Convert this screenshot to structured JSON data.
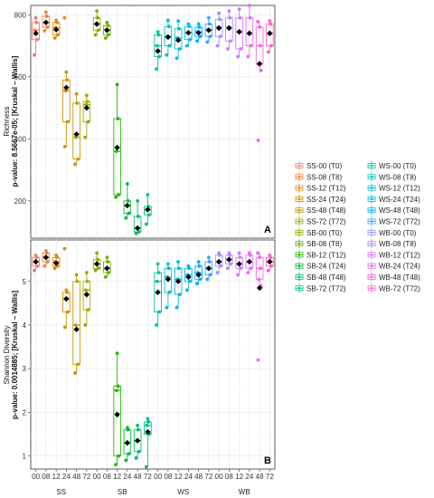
{
  "chart_data": [
    {
      "type": "boxplot",
      "panel_tag": "A",
      "ylabel_line1": "Richness",
      "ylabel_line2": "p-value: 8.5667e-05; [Kruskal – Wallis]",
      "ylim": [
        80,
        830
      ],
      "yticks": [
        200,
        400,
        600,
        800
      ],
      "tick_labels": [
        "200",
        "400",
        "600",
        "800"
      ],
      "grid": true,
      "samples": [
        {
          "id": "SS-00",
          "q1": 720,
          "med": 750,
          "q3": 775,
          "lo": 670,
          "hi": 790,
          "mean": 740,
          "pts": [
            670,
            720,
            750,
            775,
            790
          ]
        },
        {
          "id": "SS-08",
          "q1": 760,
          "med": 775,
          "q3": 795,
          "lo": 748,
          "hi": 808,
          "mean": 775,
          "pts": [
            748,
            760,
            775,
            795,
            808
          ]
        },
        {
          "id": "SS-12",
          "q1": 735,
          "med": 758,
          "q3": 775,
          "lo": 725,
          "hi": 782,
          "mean": 752,
          "pts": [
            725,
            735,
            758,
            775,
            782
          ]
        },
        {
          "id": "SS-24",
          "q1": 455,
          "med": 555,
          "q3": 590,
          "lo": 375,
          "hi": 615,
          "mean": 565,
          "pts": [
            375,
            455,
            555,
            590,
            615,
            790
          ]
        },
        {
          "id": "SS-48",
          "q1": 335,
          "med": 405,
          "q3": 515,
          "lo": 318,
          "hi": 545,
          "mean": 415,
          "pts": [
            318,
            335,
            405,
            515,
            545
          ]
        },
        {
          "id": "SS-72",
          "q1": 455,
          "med": 510,
          "q3": 520,
          "lo": 405,
          "hi": 540,
          "mean": 500,
          "pts": [
            405,
            455,
            510,
            520,
            540
          ]
        },
        {
          "id": "SB-00",
          "q1": 750,
          "med": 770,
          "q3": 790,
          "lo": 735,
          "hi": 812,
          "mean": 770,
          "pts": [
            735,
            750,
            770,
            790,
            812
          ]
        },
        {
          "id": "SB-08",
          "q1": 735,
          "med": 752,
          "q3": 765,
          "lo": 725,
          "hi": 775,
          "mean": 750,
          "pts": [
            725,
            735,
            752,
            765,
            775
          ]
        },
        {
          "id": "SB-12",
          "q1": 220,
          "med": 360,
          "q3": 465,
          "lo": 212,
          "hi": 575,
          "mean": 372,
          "pts": [
            212,
            220,
            360,
            465,
            575
          ]
        },
        {
          "id": "SB-24",
          "q1": 160,
          "med": 185,
          "q3": 200,
          "lo": 145,
          "hi": 255,
          "mean": 185,
          "pts": [
            145,
            160,
            185,
            200,
            255
          ]
        },
        {
          "id": "SB-48",
          "q1": 100,
          "med": 112,
          "q3": 150,
          "lo": 95,
          "hi": 200,
          "mean": 112,
          "pts": [
            95,
            100,
            112,
            150,
            200
          ]
        },
        {
          "id": "SB-72",
          "q1": 155,
          "med": 172,
          "q3": 182,
          "lo": 125,
          "hi": 220,
          "mean": 172,
          "pts": [
            125,
            155,
            172,
            182,
            220
          ]
        },
        {
          "id": "WS-00",
          "q1": 665,
          "med": 700,
          "q3": 735,
          "lo": 625,
          "hi": 745,
          "mean": 683,
          "pts": [
            625,
            665,
            700,
            735,
            745
          ]
        },
        {
          "id": "WS-08",
          "q1": 700,
          "med": 730,
          "q3": 762,
          "lo": 670,
          "hi": 782,
          "mean": 728,
          "pts": [
            670,
            700,
            730,
            762,
            782
          ]
        },
        {
          "id": "WS-12",
          "q1": 690,
          "med": 725,
          "q3": 755,
          "lo": 660,
          "hi": 780,
          "mean": 718,
          "pts": [
            660,
            690,
            725,
            755,
            780
          ]
        },
        {
          "id": "WS-24",
          "q1": 720,
          "med": 742,
          "q3": 762,
          "lo": 700,
          "hi": 770,
          "mean": 742,
          "pts": [
            700,
            720,
            742,
            762,
            770
          ]
        },
        {
          "id": "WS-48",
          "q1": 730,
          "med": 745,
          "q3": 760,
          "lo": 715,
          "hi": 770,
          "mean": 742,
          "pts": [
            715,
            730,
            745,
            760,
            770
          ]
        },
        {
          "id": "WS-72",
          "q1": 730,
          "med": 752,
          "q3": 770,
          "lo": 712,
          "hi": 790,
          "mean": 750,
          "pts": [
            712,
            730,
            752,
            770,
            790
          ]
        },
        {
          "id": "WB-00",
          "q1": 730,
          "med": 760,
          "q3": 785,
          "lo": 700,
          "hi": 805,
          "mean": 757,
          "pts": [
            700,
            730,
            760,
            785,
            805
          ]
        },
        {
          "id": "WB-08",
          "q1": 715,
          "med": 760,
          "q3": 790,
          "lo": 690,
          "hi": 812,
          "mean": 757,
          "pts": [
            690,
            715,
            760,
            790,
            812
          ]
        },
        {
          "id": "WB-12",
          "q1": 690,
          "med": 745,
          "q3": 790,
          "lo": 665,
          "hi": 818,
          "mean": 745,
          "pts": [
            665,
            690,
            745,
            790,
            818
          ]
        },
        {
          "id": "WB-24",
          "q1": 700,
          "med": 740,
          "q3": 790,
          "lo": 665,
          "hi": 830,
          "mean": 740,
          "pts": [
            665,
            700,
            740,
            790,
            830
          ]
        },
        {
          "id": "WB-48",
          "q1": 640,
          "med": 700,
          "q3": 760,
          "lo": 620,
          "hi": 778,
          "mean": 642,
          "pts": [
            395,
            620,
            640,
            700,
            760,
            778
          ]
        },
        {
          "id": "WB-72",
          "q1": 700,
          "med": 740,
          "q3": 770,
          "lo": 680,
          "hi": 780,
          "mean": 740,
          "pts": [
            680,
            700,
            740,
            770,
            780
          ]
        }
      ]
    },
    {
      "type": "boxplot",
      "panel_tag": "B",
      "ylabel_line1": "Shannon Diversity",
      "ylabel_line2": "p-value: 0.0014885; [Kruskal – Wallis]",
      "ylim": [
        0.7,
        5.95
      ],
      "yticks": [
        1,
        2,
        3,
        4,
        5
      ],
      "tick_labels": [
        "1",
        "2",
        "3",
        "4",
        "5"
      ],
      "grid": true,
      "samples": [
        {
          "id": "SS-00",
          "q1": 5.35,
          "med": 5.45,
          "q3": 5.55,
          "lo": 5.25,
          "hi": 5.6,
          "mean": 5.45,
          "pts": [
            5.25,
            5.35,
            5.45,
            5.55,
            5.6
          ]
        },
        {
          "id": "SS-08",
          "q1": 5.45,
          "med": 5.55,
          "q3": 5.65,
          "lo": 5.35,
          "hi": 5.7,
          "mean": 5.55,
          "pts": [
            5.35,
            5.45,
            5.55,
            5.65,
            5.7
          ]
        },
        {
          "id": "SS-12",
          "q1": 5.35,
          "med": 5.45,
          "q3": 5.55,
          "lo": 5.3,
          "hi": 5.6,
          "mean": 5.42,
          "pts": [
            5.3,
            5.35,
            5.45,
            5.55,
            5.6
          ]
        },
        {
          "id": "SS-24",
          "q1": 4.3,
          "med": 4.6,
          "q3": 4.75,
          "lo": 3.95,
          "hi": 4.8,
          "mean": 4.6,
          "pts": [
            3.95,
            4.3,
            4.6,
            4.75,
            4.8,
            5.75
          ]
        },
        {
          "id": "SS-48",
          "q1": 3.1,
          "med": 4.0,
          "q3": 5.0,
          "lo": 2.9,
          "hi": 5.15,
          "mean": 3.9,
          "pts": [
            2.9,
            3.1,
            4.0,
            5.0,
            5.15
          ]
        },
        {
          "id": "SS-72",
          "q1": 4.35,
          "med": 4.8,
          "q3": 5.0,
          "lo": 4.0,
          "hi": 5.2,
          "mean": 4.7,
          "pts": [
            4.0,
            4.35,
            4.8,
            5.0,
            5.2
          ]
        },
        {
          "id": "SB-00",
          "q1": 5.3,
          "med": 5.4,
          "q3": 5.5,
          "lo": 5.25,
          "hi": 5.65,
          "mean": 5.4,
          "pts": [
            5.25,
            5.3,
            5.4,
            5.5,
            5.65
          ]
        },
        {
          "id": "SB-08",
          "q1": 5.2,
          "med": 5.3,
          "q3": 5.45,
          "lo": 5.1,
          "hi": 5.55,
          "mean": 5.3,
          "pts": [
            5.1,
            5.2,
            5.3,
            5.45,
            5.55
          ]
        },
        {
          "id": "SB-12",
          "q1": 1.0,
          "med": 2.5,
          "q3": 2.6,
          "lo": 0.8,
          "hi": 3.35,
          "mean": 1.95,
          "pts": [
            0.8,
            1.0,
            2.5,
            2.6,
            3.35
          ]
        },
        {
          "id": "SB-24",
          "q1": 1.05,
          "med": 1.3,
          "q3": 1.6,
          "lo": 0.9,
          "hi": 1.65,
          "mean": 1.3,
          "pts": [
            0.9,
            1.05,
            1.3,
            1.6,
            1.65
          ]
        },
        {
          "id": "SB-48",
          "q1": 1.1,
          "med": 1.35,
          "q3": 1.6,
          "lo": 0.95,
          "hi": 1.7,
          "mean": 1.35,
          "pts": [
            0.95,
            1.1,
            1.35,
            1.6,
            1.7
          ]
        },
        {
          "id": "SB-72",
          "q1": 1.5,
          "med": 1.7,
          "q3": 1.78,
          "lo": 0.75,
          "hi": 1.85,
          "mean": 1.55,
          "pts": [
            0.75,
            1.5,
            1.7,
            1.78,
            1.85
          ]
        },
        {
          "id": "WS-00",
          "q1": 4.3,
          "med": 5.0,
          "q3": 5.2,
          "lo": 4.0,
          "hi": 5.4,
          "mean": 4.75,
          "pts": [
            4.0,
            4.3,
            5.0,
            5.2,
            5.4
          ]
        },
        {
          "id": "WS-08",
          "q1": 4.75,
          "med": 5.1,
          "q3": 5.3,
          "lo": 4.4,
          "hi": 5.4,
          "mean": 5.05,
          "pts": [
            4.4,
            4.75,
            5.1,
            5.3,
            5.4
          ]
        },
        {
          "id": "WS-12",
          "q1": 4.7,
          "med": 5.05,
          "q3": 5.3,
          "lo": 4.4,
          "hi": 5.45,
          "mean": 5.0,
          "pts": [
            4.4,
            4.7,
            5.05,
            5.3,
            5.45
          ]
        },
        {
          "id": "WS-24",
          "q1": 5.0,
          "med": 5.15,
          "q3": 5.3,
          "lo": 4.8,
          "hi": 5.35,
          "mean": 5.1,
          "pts": [
            4.8,
            5.0,
            5.15,
            5.3,
            5.35
          ]
        },
        {
          "id": "WS-48",
          "q1": 5.05,
          "med": 5.2,
          "q3": 5.35,
          "lo": 4.95,
          "hi": 5.45,
          "mean": 5.15,
          "pts": [
            4.95,
            5.05,
            5.2,
            5.35,
            5.45
          ]
        },
        {
          "id": "WS-72",
          "q1": 5.15,
          "med": 5.3,
          "q3": 5.45,
          "lo": 5.05,
          "hi": 5.55,
          "mean": 5.3,
          "pts": [
            5.05,
            5.15,
            5.3,
            5.45,
            5.55
          ]
        },
        {
          "id": "WB-00",
          "q1": 5.35,
          "med": 5.45,
          "q3": 5.6,
          "lo": 5.2,
          "hi": 5.65,
          "mean": 5.45,
          "pts": [
            5.2,
            5.35,
            5.45,
            5.6,
            5.65
          ]
        },
        {
          "id": "WB-08",
          "q1": 5.4,
          "med": 5.5,
          "q3": 5.6,
          "lo": 5.3,
          "hi": 5.65,
          "mean": 5.5,
          "pts": [
            5.3,
            5.4,
            5.5,
            5.6,
            5.65
          ]
        },
        {
          "id": "WB-12",
          "q1": 5.3,
          "med": 5.4,
          "q3": 5.55,
          "lo": 5.15,
          "hi": 5.65,
          "mean": 5.4,
          "pts": [
            5.15,
            5.3,
            5.4,
            5.55,
            5.65
          ]
        },
        {
          "id": "WB-24",
          "q1": 5.3,
          "med": 5.45,
          "q3": 5.6,
          "lo": 5.2,
          "hi": 5.65,
          "mean": 5.45,
          "pts": [
            5.2,
            5.3,
            5.45,
            5.6,
            5.65
          ]
        },
        {
          "id": "WB-48",
          "q1": 5.05,
          "med": 5.3,
          "q3": 5.55,
          "lo": 4.9,
          "hi": 5.65,
          "mean": 4.85,
          "pts": [
            3.2,
            4.9,
            5.05,
            5.3,
            5.55,
            5.65
          ]
        },
        {
          "id": "WB-72",
          "q1": 5.35,
          "med": 5.45,
          "q3": 5.55,
          "lo": 5.25,
          "hi": 5.6,
          "mean": 5.45,
          "pts": [
            5.25,
            5.35,
            5.45,
            5.55,
            5.6
          ]
        }
      ]
    }
  ],
  "x_axis": {
    "tick_labels": [
      "00",
      "08",
      "12",
      "24",
      "48",
      "72",
      "00",
      "08",
      "12",
      "24",
      "48",
      "72",
      "00",
      "08",
      "12",
      "24",
      "48",
      "72",
      "00",
      "08",
      "12",
      "24",
      "48",
      "72"
    ],
    "group_labels": [
      "SS",
      "SB",
      "WS",
      "WB"
    ]
  },
  "legend": {
    "entries": [
      {
        "label": "SS-00 (T0)",
        "color": "#F8766D"
      },
      {
        "label": "SS-08 (T8)",
        "color": "#F0813E"
      },
      {
        "label": "SS-12 (T12)",
        "color": "#E18A00"
      },
      {
        "label": "SS-24 (T24)",
        "color": "#D39200"
      },
      {
        "label": "SS-48 (T48)",
        "color": "#BE9C00"
      },
      {
        "label": "SS-72 (T72)",
        "color": "#A7A400"
      },
      {
        "label": "SB-00 (T0)",
        "color": "#8CAB00"
      },
      {
        "label": "SB-08 (T8)",
        "color": "#68B100"
      },
      {
        "label": "SB-12 (T12)",
        "color": "#24B700"
      },
      {
        "label": "SB-24 (T24)",
        "color": "#00BA38"
      },
      {
        "label": "SB-48 (T48)",
        "color": "#00BE6C"
      },
      {
        "label": "SB-72 (T72)",
        "color": "#00C08D"
      },
      {
        "label": "WS-00 (T0)",
        "color": "#00C1A7"
      },
      {
        "label": "WS-08 (T8)",
        "color": "#00BFC4"
      },
      {
        "label": "WS-12 (T12)",
        "color": "#00BBDA"
      },
      {
        "label": "WS-24 (T24)",
        "color": "#00B4EF"
      },
      {
        "label": "WS-48 (T48)",
        "color": "#00A9FF"
      },
      {
        "label": "WS-72 (T72)",
        "color": "#35A2FF"
      },
      {
        "label": "WB-00 (T0)",
        "color": "#9590FF"
      },
      {
        "label": "WB-08 (T8)",
        "color": "#B983FF"
      },
      {
        "label": "WB-12 (T12)",
        "color": "#D376FF"
      },
      {
        "label": "WB-24 (T24)",
        "color": "#E76BF3"
      },
      {
        "label": "WB-48 (T48)",
        "color": "#F564E3"
      },
      {
        "label": "WB-72 (T72)",
        "color": "#FF61C3"
      }
    ]
  }
}
